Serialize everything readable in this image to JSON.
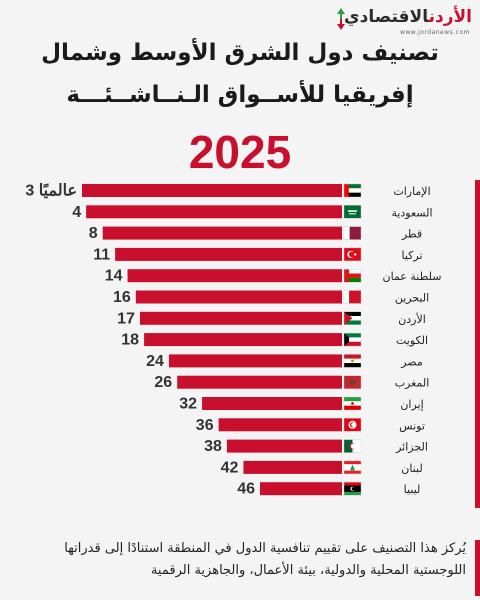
{
  "logo": {
    "part_red": "الأردن",
    "part_dark": "الاقتصادي",
    "url": "www.jordanews.com"
  },
  "title_line1": "تصنيف دول الشرق الأوسط وشمال",
  "title_line2": "إفريقيا للأســواق الـنــاشــئـــة",
  "year": "2025",
  "note": "يُركز هذا التصنيف على تقييم تنافسية الدول في المنطقة استنادًا إلى قدراتها اللوجستية المحلية والدولية، بيئة الأعمال، والجاهزية الرقمية",
  "colors": {
    "bar": "#c8102e",
    "accent": "#c8102e",
    "text": "#333333"
  },
  "chart_data": {
    "type": "bar",
    "orientation": "horizontal",
    "sort": "rank ascending",
    "categories": [
      "الإمارات",
      "السعودية",
      "قطر",
      "تركيا",
      "سلطنة عمان",
      "البحرين",
      "الأردن",
      "الكويت",
      "مصر",
      "المغرب",
      "إيران",
      "تونس",
      "الجزائر",
      "لبنان",
      "ليبيا"
    ],
    "values": [
      3,
      4,
      8,
      11,
      14,
      16,
      17,
      18,
      24,
      26,
      32,
      36,
      38,
      42,
      46
    ],
    "data_labels": [
      "3 عالميًا",
      "4",
      "8",
      "11",
      "14",
      "16",
      "17",
      "18",
      "24",
      "26",
      "32",
      "36",
      "38",
      "42",
      "46"
    ],
    "flags": [
      "uae-flag",
      "saudi-flag",
      "qatar-flag",
      "turkey-flag",
      "oman-flag",
      "bahrain-flag",
      "jordan-flag",
      "kuwait-flag",
      "egypt-flag",
      "morocco-flag",
      "iran-flag",
      "tunisia-flag",
      "algeria-flag",
      "lebanon-flag",
      "libya-flag"
    ],
    "xlim": [
      0,
      50
    ],
    "grid": false,
    "legend": "none"
  }
}
